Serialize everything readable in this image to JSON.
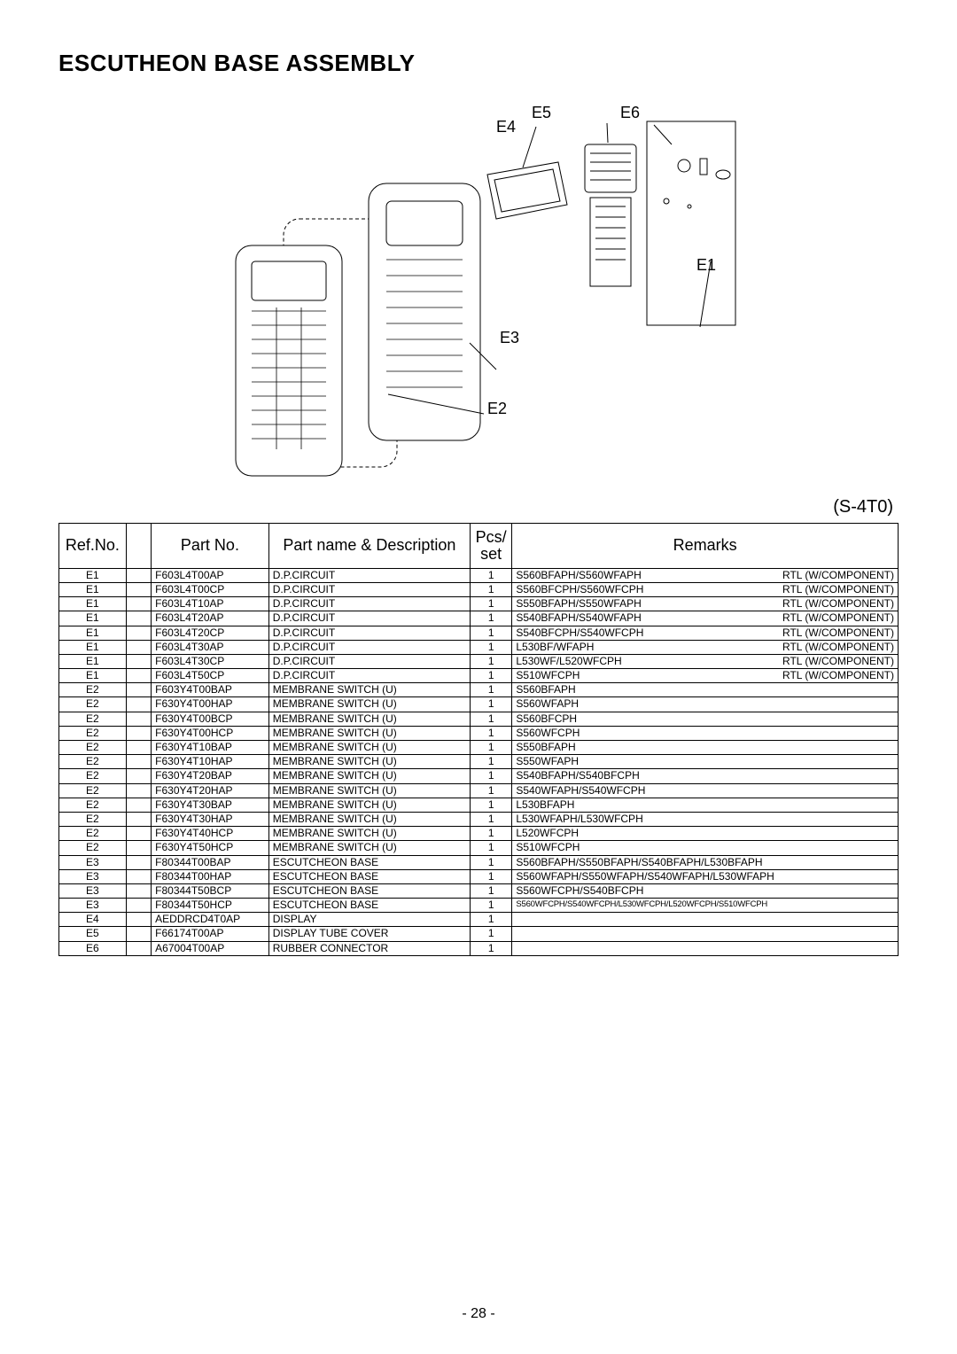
{
  "title": "ESCUTHEON BASE ASSEMBLY",
  "sheet_code": "(S-4T0)",
  "page_number": "- 28 -",
  "diagram_labels": {
    "E1": "E1",
    "E2": "E2",
    "E3": "E3",
    "E4": "E4",
    "E5": "E5",
    "E6": "E6"
  },
  "table": {
    "columns": {
      "ref": "Ref.No.",
      "part": "Part No.",
      "name": "Part name & Description",
      "pcs": "Pcs/\nset",
      "remarks": "Remarks"
    },
    "rows": [
      {
        "ref": "E1",
        "part": "F603L4T00AP",
        "name": "D.P.CIRCUIT",
        "pcs": "1",
        "rem1": "S560BFAPH/S560WFAPH",
        "rem2": "RTL (W/COMPONENT)"
      },
      {
        "ref": "E1",
        "part": "F603L4T00CP",
        "name": "D.P.CIRCUIT",
        "pcs": "1",
        "rem1": "S560BFCPH/S560WFCPH",
        "rem2": "RTL (W/COMPONENT)"
      },
      {
        "ref": "E1",
        "part": "F603L4T10AP",
        "name": "D.P.CIRCUIT",
        "pcs": "1",
        "rem1": "S550BFAPH/S550WFAPH",
        "rem2": "RTL (W/COMPONENT)"
      },
      {
        "ref": "E1",
        "part": "F603L4T20AP",
        "name": "D.P.CIRCUIT",
        "pcs": "1",
        "rem1": "S540BFAPH/S540WFAPH",
        "rem2": "RTL (W/COMPONENT)"
      },
      {
        "ref": "E1",
        "part": "F603L4T20CP",
        "name": "D.P.CIRCUIT",
        "pcs": "1",
        "rem1": "S540BFCPH/S540WFCPH",
        "rem2": "RTL (W/COMPONENT)"
      },
      {
        "ref": "E1",
        "part": "F603L4T30AP",
        "name": "D.P.CIRCUIT",
        "pcs": "1",
        "rem1": "L530BF/WFAPH",
        "rem2": "RTL (W/COMPONENT)"
      },
      {
        "ref": "E1",
        "part": "F603L4T30CP",
        "name": "D.P.CIRCUIT",
        "pcs": "1",
        "rem1": "L530WF/L520WFCPH",
        "rem2": "RTL (W/COMPONENT)"
      },
      {
        "ref": "E1",
        "part": "F603L4T50CP",
        "name": "D.P.CIRCUIT",
        "pcs": "1",
        "rem1": "S510WFCPH",
        "rem2": "RTL (W/COMPONENT)"
      },
      {
        "ref": "E2",
        "part": "F603Y4T00BAP",
        "name": "MEMBRANE SWITCH (U)",
        "pcs": "1",
        "rem1": "S560BFAPH",
        "rem2": ""
      },
      {
        "ref": "E2",
        "part": "F630Y4T00HAP",
        "name": "MEMBRANE SWITCH (U)",
        "pcs": "1",
        "rem1": "S560WFAPH",
        "rem2": ""
      },
      {
        "ref": "E2",
        "part": "F630Y4T00BCP",
        "name": "MEMBRANE SWITCH (U)",
        "pcs": "1",
        "rem1": "S560BFCPH",
        "rem2": ""
      },
      {
        "ref": "E2",
        "part": "F630Y4T00HCP",
        "name": "MEMBRANE SWITCH (U)",
        "pcs": "1",
        "rem1": "S560WFCPH",
        "rem2": ""
      },
      {
        "ref": "E2",
        "part": "F630Y4T10BAP",
        "name": "MEMBRANE SWITCH (U)",
        "pcs": "1",
        "rem1": "S550BFAPH",
        "rem2": ""
      },
      {
        "ref": "E2",
        "part": "F630Y4T10HAP",
        "name": "MEMBRANE SWITCH (U)",
        "pcs": "1",
        "rem1": "S550WFAPH",
        "rem2": ""
      },
      {
        "ref": "E2",
        "part": "F630Y4T20BAP",
        "name": "MEMBRANE SWITCH (U)",
        "pcs": "1",
        "rem1": "S540BFAPH/S540BFCPH",
        "rem2": ""
      },
      {
        "ref": "E2",
        "part": "F630Y4T20HAP",
        "name": "MEMBRANE SWITCH (U)",
        "pcs": "1",
        "rem1": "S540WFAPH/S540WFCPH",
        "rem2": ""
      },
      {
        "ref": "E2",
        "part": "F630Y4T30BAP",
        "name": "MEMBRANE SWITCH (U)",
        "pcs": "1",
        "rem1": "L530BFAPH",
        "rem2": ""
      },
      {
        "ref": "E2",
        "part": "F630Y4T30HAP",
        "name": "MEMBRANE SWITCH (U)",
        "pcs": "1",
        "rem1": "L530WFAPH/L530WFCPH",
        "rem2": ""
      },
      {
        "ref": "E2",
        "part": "F630Y4T40HCP",
        "name": "MEMBRANE SWITCH (U)",
        "pcs": "1",
        "rem1": "L520WFCPH",
        "rem2": ""
      },
      {
        "ref": "E2",
        "part": "F630Y4T50HCP",
        "name": "MEMBRANE SWITCH (U)",
        "pcs": "1",
        "rem1": "S510WFCPH",
        "rem2": ""
      },
      {
        "ref": "E3",
        "part": "F80344T00BAP",
        "name": "ESCUTCHEON BASE",
        "pcs": "1",
        "rem1": "S560BFAPH/S550BFAPH/S540BFAPH/L530BFAPH",
        "rem2": ""
      },
      {
        "ref": "E3",
        "part": "F80344T00HAP",
        "name": "ESCUTCHEON BASE",
        "pcs": "1",
        "rem1": "S560WFAPH/S550WFAPH/S540WFAPH/L530WFAPH",
        "rem2": ""
      },
      {
        "ref": "E3",
        "part": "F80344T50BCP",
        "name": "ESCUTCHEON BASE",
        "pcs": "1",
        "rem1": "S560WFCPH/S540BFCPH",
        "rem2": ""
      },
      {
        "ref": "E3",
        "part": "F80344T50HCP",
        "name": "ESCUTCHEON BASE",
        "pcs": "1",
        "rem1": "S560WFCPH/S540WFCPH/L530WFCPH/L520WFCPH/S510WFCPH",
        "rem2": "",
        "tiny": true
      },
      {
        "ref": "E4",
        "part": "AEDDRCD4T0AP",
        "name": "DISPLAY",
        "pcs": "1",
        "rem1": "",
        "rem2": ""
      },
      {
        "ref": "E5",
        "part": "F66174T00AP",
        "name": "DISPLAY TUBE COVER",
        "pcs": "1",
        "rem1": "",
        "rem2": ""
      },
      {
        "ref": "E6",
        "part": "A67004T00AP",
        "name": "RUBBER CONNECTOR",
        "pcs": "1",
        "rem1": "",
        "rem2": ""
      }
    ]
  }
}
